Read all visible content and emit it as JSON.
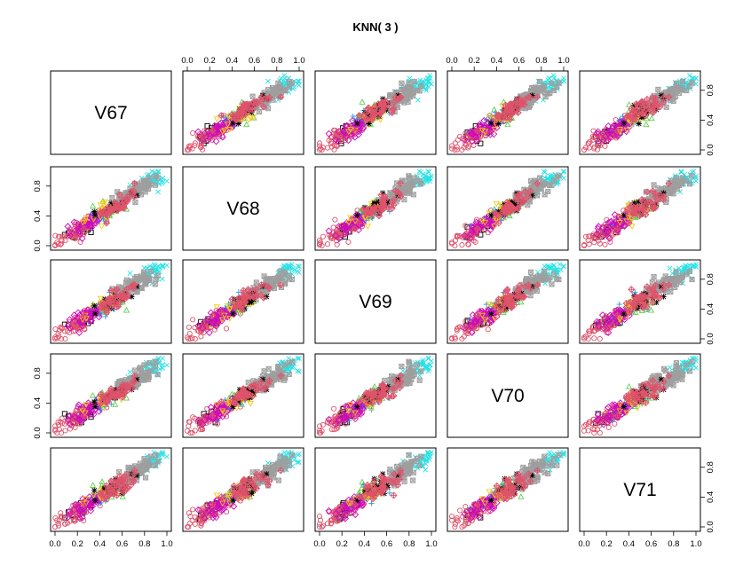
{
  "chart_data": {
    "type": "scatter",
    "title": "KNN( 3 )",
    "variables": [
      "V67",
      "V68",
      "V69",
      "V70",
      "V71"
    ],
    "axis_range": [
      0,
      1
    ],
    "ticks": [
      "0.0",
      "0.2",
      "0.4",
      "0.6",
      "0.8",
      "1.0"
    ],
    "tick_values": [
      0,
      0.2,
      0.4,
      0.6,
      0.8,
      1.0
    ],
    "side_ticks": [
      "0.0",
      "0.4",
      "0.8"
    ],
    "side_tick_values": [
      0,
      0.4,
      0.8
    ],
    "grid": false,
    "legend": "none",
    "classes": [
      {
        "color": "#000000",
        "symbol": "square",
        "center": 0.22,
        "spread": 0.05,
        "count": 12
      },
      {
        "color": "#DF536B",
        "symbol": "circle",
        "center": 0.2,
        "spread": 0.09,
        "count": 70
      },
      {
        "color": "#61D04F",
        "symbol": "triangle",
        "center": 0.48,
        "spread": 0.06,
        "count": 25
      },
      {
        "color": "#2297E6",
        "symbol": "plus",
        "center": 0.4,
        "spread": 0.07,
        "count": 30
      },
      {
        "color": "#28E2E5",
        "symbol": "cross",
        "center": 0.88,
        "spread": 0.05,
        "count": 45
      },
      {
        "color": "#CD0BBC",
        "symbol": "diamond",
        "center": 0.3,
        "spread": 0.08,
        "count": 45
      },
      {
        "color": "#F5C710",
        "symbol": "triangle-down",
        "center": 0.45,
        "spread": 0.06,
        "count": 25
      },
      {
        "color": "#9E9E9E",
        "symbol": "square-x",
        "center": 0.72,
        "spread": 0.08,
        "count": 70
      },
      {
        "color": "#000000",
        "symbol": "asterisk",
        "center": 0.52,
        "spread": 0.06,
        "count": 18
      },
      {
        "color": "#DF536B",
        "symbol": "diamond-plus",
        "center": 0.55,
        "spread": 0.08,
        "count": 45
      }
    ]
  }
}
